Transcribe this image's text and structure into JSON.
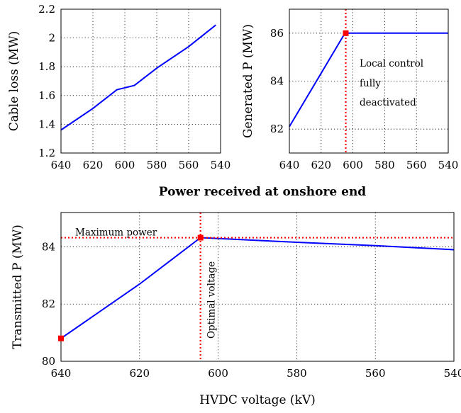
{
  "shared_xlabel": "Power received at onshore end",
  "chart_data": [
    {
      "type": "line",
      "ylabel": "Cable loss (MW)",
      "xlabel": "",
      "xlim": [
        640,
        540
      ],
      "ylim": [
        1.2,
        2.2
      ],
      "xticks": [
        640,
        620,
        600,
        580,
        560,
        540
      ],
      "yticks": [
        1.2,
        1.4,
        1.6,
        1.8,
        2.0,
        2.2
      ],
      "ytick_labels": [
        "1.2",
        "1.4",
        "1.6",
        "1.8",
        "2",
        "2.2"
      ],
      "grid": true,
      "series": [
        {
          "x": [
            640,
            620,
            605,
            594,
            580,
            560,
            543
          ],
          "y": [
            1.36,
            1.51,
            1.64,
            1.67,
            1.79,
            1.94,
            2.09
          ],
          "color": "#0000ff"
        }
      ]
    },
    {
      "type": "line",
      "ylabel": "Generated P (MW)",
      "xlabel": "",
      "xlim": [
        640,
        540
      ],
      "ylim": [
        81,
        87
      ],
      "xticks": [
        640,
        620,
        600,
        580,
        560,
        540
      ],
      "yticks": [
        82,
        84,
        86
      ],
      "ytick_labels": [
        "82",
        "84",
        "86"
      ],
      "grid": true,
      "series": [
        {
          "x": [
            640,
            605,
            604,
            540
          ],
          "y": [
            82.1,
            86.0,
            86.0,
            86.0
          ],
          "color": "#0000ff"
        }
      ],
      "vline": {
        "x": 604.5,
        "color": "#ff0000"
      },
      "marker": {
        "x": 604.5,
        "y": 86.0,
        "color": "#ff0000"
      },
      "annotation": [
        "Local control",
        "fully",
        "deactivated"
      ]
    },
    {
      "type": "line",
      "ylabel": "Transmitted P (MW)",
      "xlabel": "HVDC voltage (kV)",
      "xlim": [
        640,
        540
      ],
      "ylim": [
        80,
        85.2
      ],
      "xticks": [
        640,
        620,
        600,
        580,
        560,
        540
      ],
      "yticks": [
        80,
        82,
        84
      ],
      "ytick_labels": [
        "80",
        "82",
        "84"
      ],
      "grid": true,
      "series": [
        {
          "x": [
            640,
            620,
            604.5,
            580,
            560,
            540
          ],
          "y": [
            80.8,
            82.7,
            84.32,
            84.16,
            84.04,
            83.9
          ],
          "color": "#0000ff"
        }
      ],
      "hline": {
        "y": 84.32,
        "color": "#ff0000",
        "label": "Maximum power"
      },
      "vline": {
        "x": 604.5,
        "color": "#ff0000",
        "label": "Optimal voltage"
      },
      "markers": [
        {
          "x": 604.5,
          "y": 84.32,
          "color": "#ff0000"
        },
        {
          "x": 640,
          "y": 80.8,
          "color": "#ff0000"
        }
      ]
    }
  ]
}
